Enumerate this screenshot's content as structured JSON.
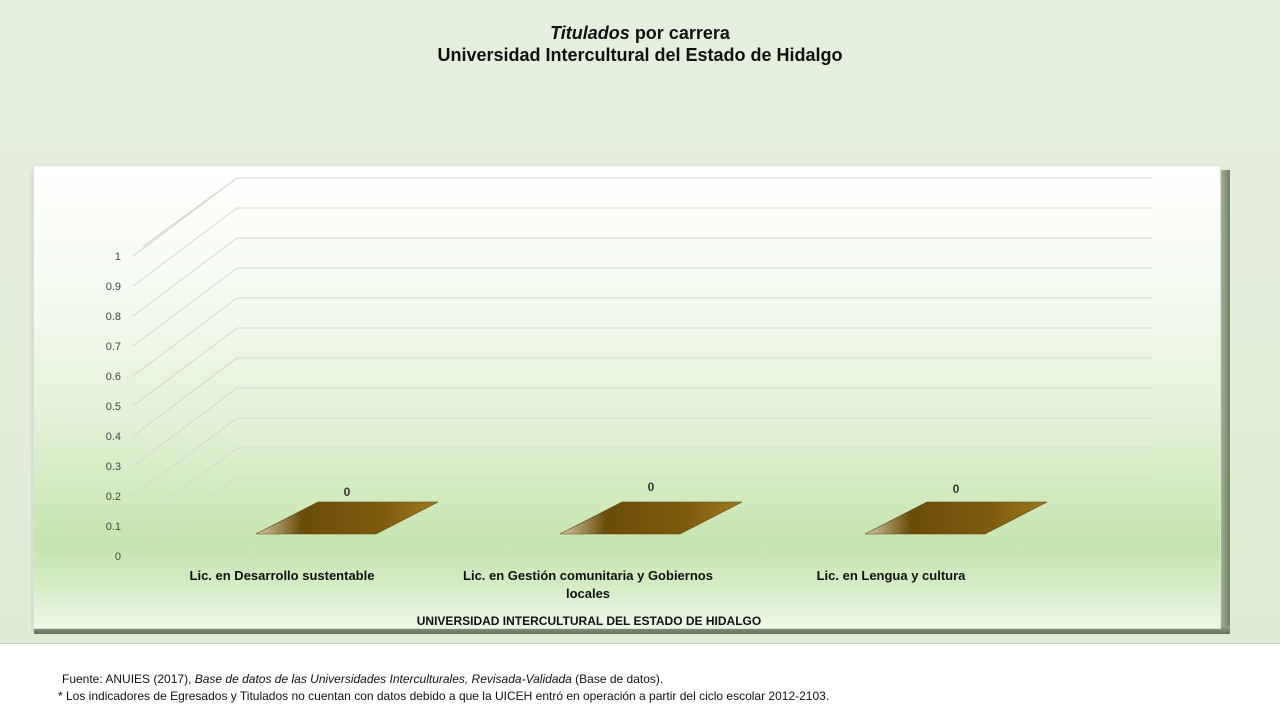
{
  "title": {
    "line1_italic": "Titulados",
    "line1_rest": " por carrera",
    "line2": "Universidad Intercultural del Estado de Hidalgo"
  },
  "chart_data": {
    "type": "bar",
    "style": "3d-column",
    "categories": [
      "Lic. en Desarrollo sustentable",
      "Lic. en Gestión comunitaria y Gobiernos locales",
      "Lic. en Lengua y cultura"
    ],
    "values": [
      0,
      0,
      0
    ],
    "data_labels": [
      "0",
      "0",
      "0"
    ],
    "xlabel": "UNIVERSIDAD INTERCULTURAL DEL ESTADO DE HIDALGO",
    "ylabel": "",
    "ylim": [
      0,
      1
    ],
    "yticks": [
      "0",
      "0.1",
      "0.2",
      "0.3",
      "0.4",
      "0.5",
      "0.6",
      "0.7",
      "0.8",
      "0.9",
      "1"
    ],
    "grid": true,
    "legend": "none",
    "bar_color": "#7a5a10"
  },
  "footer": {
    "source_prefix": "Fuente: ANUIES (2017), ",
    "source_italic": "Base de datos de las Universidades Interculturales, Revisada-Validada",
    "source_suffix": " (Base de datos).",
    "note": "* Los indicadores de Egresados y Titulados no cuentan con datos debido a que la UICEH entró en operación a partir del ciclo escolar 2012-2103."
  }
}
